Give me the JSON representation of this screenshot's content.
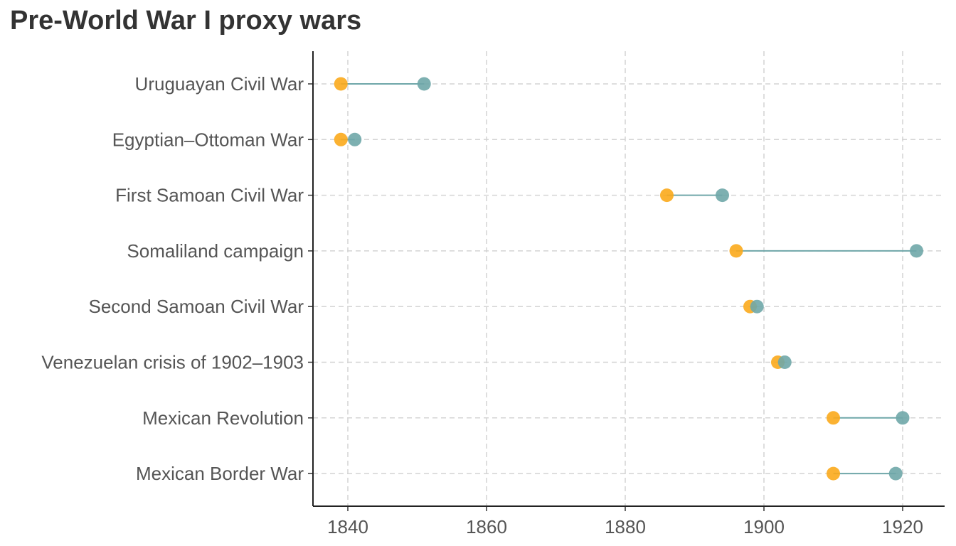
{
  "chart_data": {
    "type": "dumbbell",
    "title": "Pre-World War I proxy wars",
    "xlabel": "",
    "ylabel": "",
    "xlim": [
      1835,
      1926
    ],
    "x_ticks": [
      1840,
      1860,
      1880,
      1900,
      1920
    ],
    "grid": true,
    "legend": "none",
    "start_color": "#FBAA1C",
    "end_color": "#6FA7A9",
    "segment_color": "#6FA7A9",
    "items": [
      {
        "label": "Uruguayan Civil War",
        "start": 1839,
        "end": 1851
      },
      {
        "label": "Egyptian–Ottoman War",
        "start": 1839,
        "end": 1841
      },
      {
        "label": "First Samoan Civil War",
        "start": 1886,
        "end": 1894
      },
      {
        "label": "Somaliland campaign",
        "start": 1896,
        "end": 1922
      },
      {
        "label": "Second Samoan Civil War",
        "start": 1898,
        "end": 1899
      },
      {
        "label": "Venezuelan crisis of 1902–1903",
        "start": 1902,
        "end": 1903
      },
      {
        "label": "Mexican Revolution",
        "start": 1910,
        "end": 1920
      },
      {
        "label": "Mexican Border War",
        "start": 1910,
        "end": 1919
      }
    ]
  }
}
